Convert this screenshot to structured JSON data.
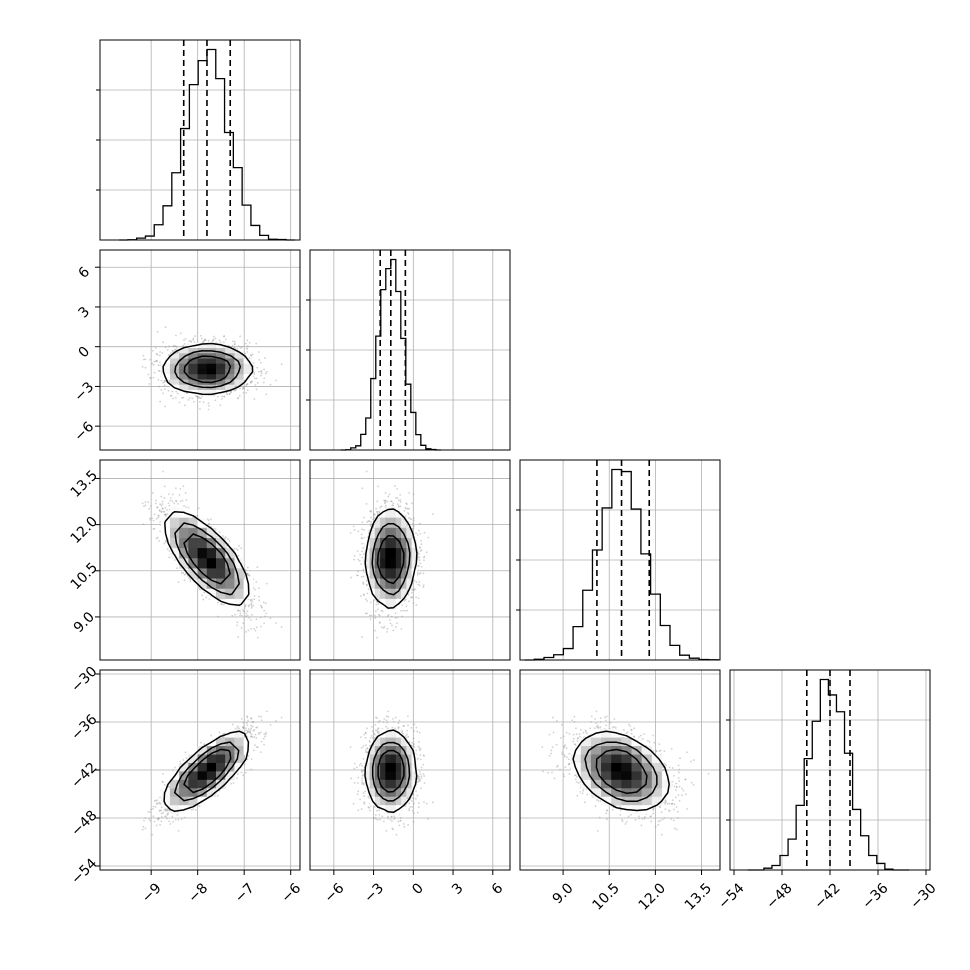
{
  "chart_data": {
    "type": "corner",
    "title": "",
    "grid": true,
    "quantiles": [
      0.16,
      0.5,
      0.84
    ],
    "parameters": [
      {
        "mean": -7.8,
        "sd": 0.45,
        "xlim": [
          -10.1,
          -5.8
        ],
        "ticks": [
          -9,
          -8,
          -7,
          -6
        ],
        "tick_labels": [
          "−9",
          "−8",
          "−7",
          "−6"
        ],
        "q": [
          -8.3,
          -7.8,
          -7.3
        ]
      },
      {
        "mean": -1.7,
        "sd": 0.9,
        "xlim": [
          -7.8,
          7.3
        ],
        "ticks": [
          -6,
          -3,
          0,
          3,
          6
        ],
        "tick_labels": [
          "−6",
          "−3",
          "0",
          "3",
          "6"
        ],
        "q": [
          -2.5,
          -1.7,
          -0.6
        ]
      },
      {
        "mean": 10.9,
        "sd": 0.75,
        "xlim": [
          7.6,
          14.1
        ],
        "ticks": [
          9.0,
          10.5,
          12.0,
          13.5
        ],
        "tick_labels": [
          "9.0",
          "10.5",
          "12.0",
          "13.5"
        ],
        "q": [
          10.1,
          10.9,
          11.8
        ]
      },
      {
        "mean": -42.2,
        "sd": 2.4,
        "xlim": [
          -54.5,
          -29.5
        ],
        "ticks": [
          -54,
          -48,
          -42,
          -36,
          -30
        ],
        "tick_labels": [
          "−54",
          "−48",
          "−42",
          "−36",
          "−30"
        ],
        "q": [
          -44.9,
          -42.0,
          -39.5
        ]
      }
    ],
    "correlations": [
      {
        "pair": [
          1,
          0
        ],
        "rho": 0.02
      },
      {
        "pair": [
          2,
          0
        ],
        "rho": -0.78
      },
      {
        "pair": [
          2,
          1
        ],
        "rho": 0.03
      },
      {
        "pair": [
          3,
          0
        ],
        "rho": 0.82
      },
      {
        "pair": [
          3,
          1
        ],
        "rho": 0.02
      },
      {
        "pair": [
          3,
          2
        ],
        "rho": -0.38
      }
    ],
    "y_axis_ticks": {
      "1": {
        "ticks": [
          -6,
          -3,
          0,
          3,
          6
        ],
        "tick_labels": [
          "−6",
          "−3",
          "0",
          "3",
          "6"
        ]
      },
      "2": {
        "ticks": [
          9.0,
          10.5,
          12.0,
          13.5
        ],
        "tick_labels": [
          "9.0",
          "10.5",
          "12.0",
          "13.5"
        ]
      },
      "3": {
        "ticks": [
          -54,
          -48,
          -42,
          -36,
          -30
        ],
        "tick_labels": [
          "−54",
          "−48",
          "−42",
          "−36",
          "−30"
        ]
      }
    },
    "colors": {
      "line": "#000000",
      "grid": "#b0b0b0",
      "scatter": "#9a9a9a"
    }
  }
}
